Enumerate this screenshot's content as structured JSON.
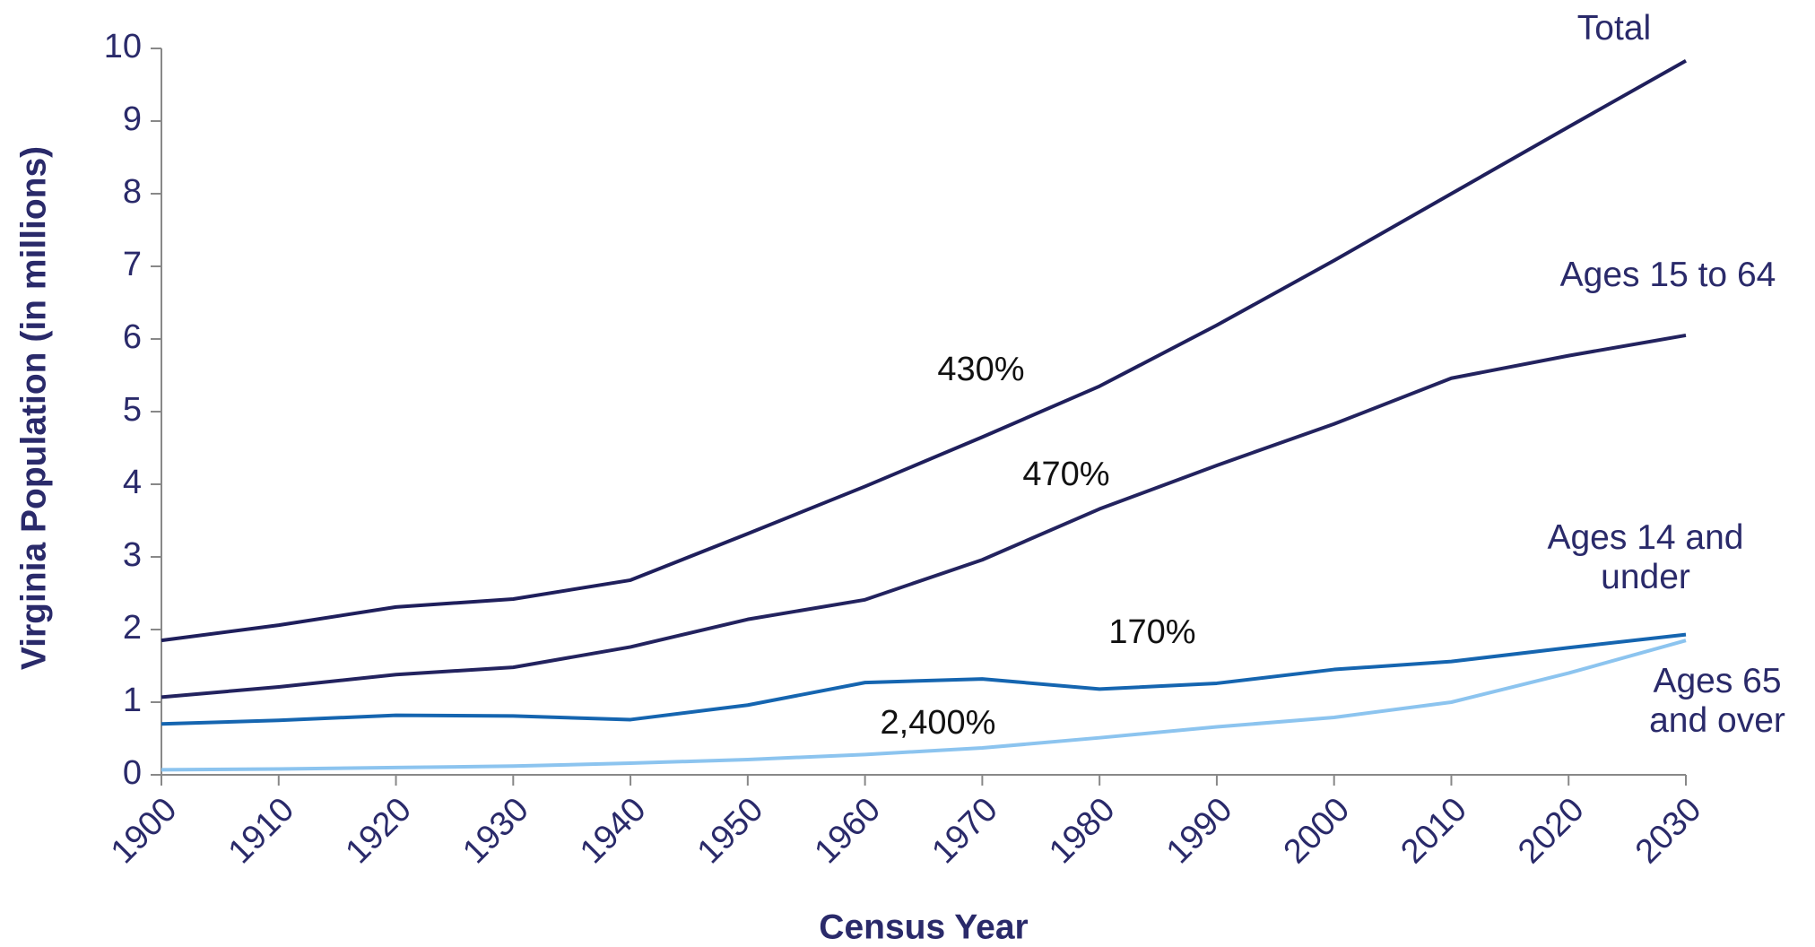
{
  "chart_data": {
    "type": "line",
    "xlabel": "Census Year",
    "ylabel": "Virginia Population (in millions)",
    "x": [
      1900,
      1910,
      1920,
      1930,
      1940,
      1950,
      1960,
      1970,
      1980,
      1990,
      2000,
      2010,
      2020,
      2030
    ],
    "xlim": [
      1900,
      2030
    ],
    "xticks": [
      1900,
      1910,
      1920,
      1930,
      1940,
      1950,
      1960,
      1970,
      1980,
      1990,
      2000,
      2010,
      2020,
      2030
    ],
    "ylim": [
      0,
      10
    ],
    "yticks": [
      0,
      1,
      2,
      3,
      4,
      5,
      6,
      7,
      8,
      9,
      10
    ],
    "series": [
      {
        "name": "Total",
        "color": "#1f1f5c",
        "values": [
          1.85,
          2.06,
          2.31,
          2.42,
          2.68,
          3.32,
          3.97,
          4.65,
          5.35,
          6.19,
          7.08,
          8.0,
          8.92,
          9.83
        ]
      },
      {
        "name": "Ages 15 to 64",
        "color": "#23235f",
        "values": [
          1.07,
          1.21,
          1.38,
          1.48,
          1.76,
          2.14,
          2.41,
          2.96,
          3.66,
          4.26,
          4.83,
          5.46,
          5.77,
          6.05
        ]
      },
      {
        "name": "Ages 14 and under",
        "color": "#1565b0",
        "values": [
          0.7,
          0.75,
          0.82,
          0.81,
          0.76,
          0.96,
          1.27,
          1.32,
          1.18,
          1.26,
          1.45,
          1.56,
          1.75,
          1.93
        ]
      },
      {
        "name": "Ages 65 and over",
        "color": "#8cc4ef",
        "values": [
          0.07,
          0.08,
          0.1,
          0.12,
          0.16,
          0.21,
          0.28,
          0.37,
          0.51,
          0.66,
          0.79,
          1.0,
          1.4,
          1.85
        ]
      }
    ],
    "annotations": [
      "430%",
      "470%",
      "170%",
      "2,400%"
    ]
  }
}
